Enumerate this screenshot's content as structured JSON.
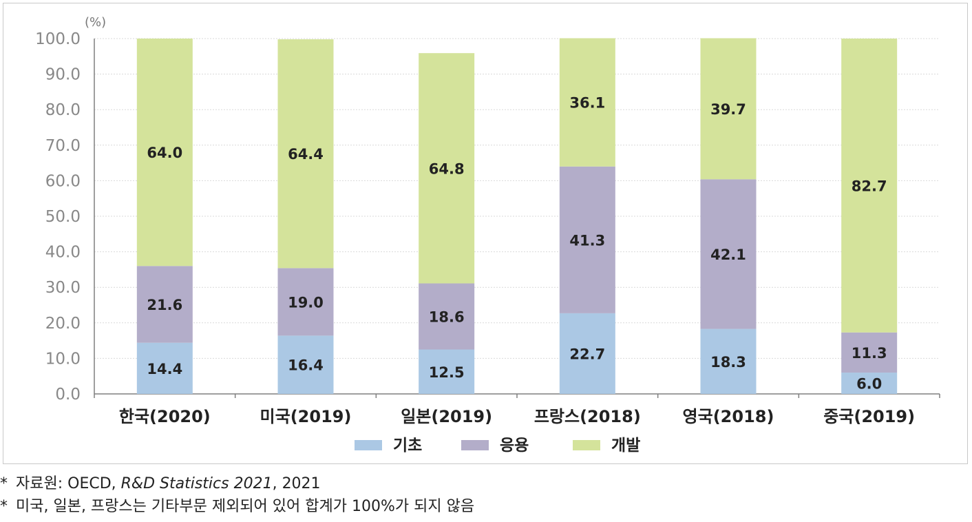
{
  "chart_data": {
    "type": "bar",
    "stacked": true,
    "unit_label": "(%)",
    "ylim": [
      0,
      100
    ],
    "yticks": [
      "0.0",
      "10.0",
      "20.0",
      "30.0",
      "40.0",
      "50.0",
      "60.0",
      "70.0",
      "80.0",
      "90.0",
      "100.0"
    ],
    "grid": true,
    "legend_position": "bottom",
    "categories": [
      "한국(2020)",
      "미국(2019)",
      "일본(2019)",
      "프랑스(2018)",
      "영국(2018)",
      "중국(2019)"
    ],
    "series": [
      {
        "name": "기초",
        "color": "#abc8e4",
        "values": [
          14.4,
          16.4,
          12.5,
          22.7,
          18.3,
          6.0
        ],
        "labels": [
          "14.4",
          "16.4",
          "12.5",
          "22.7",
          "18.3",
          "6.0"
        ]
      },
      {
        "name": "응용",
        "color": "#b3adc9",
        "values": [
          21.6,
          19.0,
          18.6,
          41.3,
          42.1,
          11.3
        ],
        "labels": [
          "21.6",
          "19.0",
          "18.6",
          "41.3",
          "42.1",
          "11.3"
        ]
      },
      {
        "name": "개발",
        "color": "#d4e39b",
        "values": [
          64.0,
          64.4,
          64.8,
          36.1,
          39.7,
          82.7
        ],
        "labels": [
          "64.0",
          "64.4",
          "64.8",
          "36.1",
          "39.7",
          "82.7"
        ]
      }
    ]
  },
  "notes": {
    "source": {
      "star": "*",
      "prefix": "자료원: OECD, ",
      "title": "R&D Statistics 2021",
      "suffix": ", 2021"
    },
    "remark": {
      "star": "*",
      "text": "미국, 일본, 프랑스는 기타부문 제외되어 있어 합계가 100%가 되지 않음"
    }
  }
}
